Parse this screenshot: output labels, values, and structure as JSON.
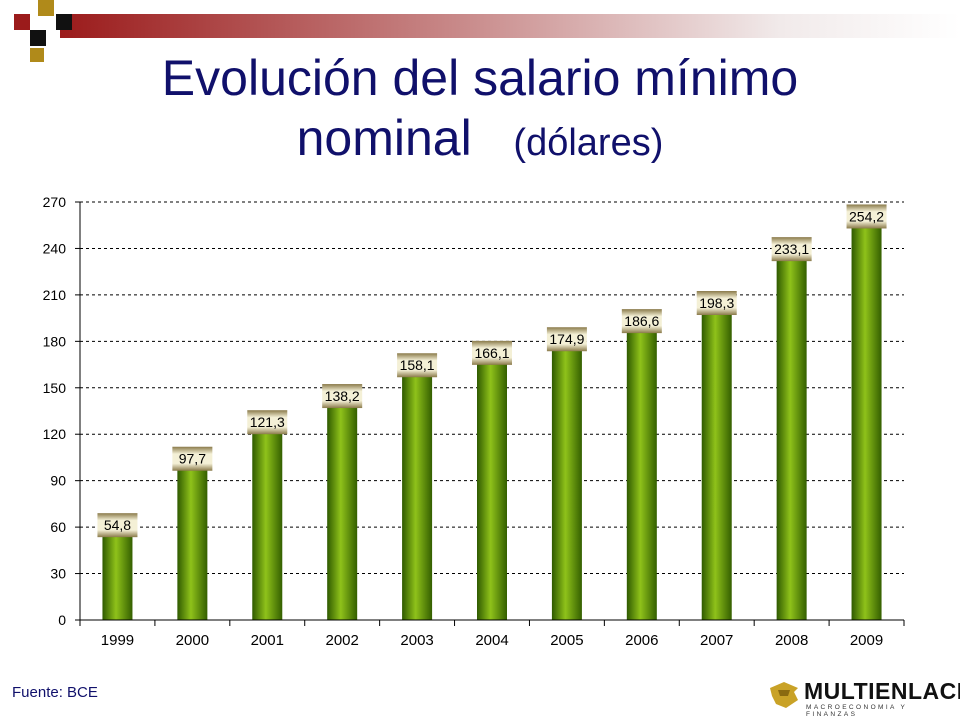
{
  "header": {
    "title_line1": "Evolución del salario mínimo",
    "title_line2": "nominal",
    "title_unit": "(dólares)",
    "accent_red": "#9b1b1b",
    "accent_gold": "#b08a1a",
    "title_color": "#10106b"
  },
  "footer": {
    "source": "Fuente: BCE",
    "logo_name": "MULTIENLACE",
    "logo_tagline": "MACROECONOMIA Y FINANZAS"
  },
  "chart_data": {
    "type": "bar",
    "title": "Evolución del salario mínimo nominal (dólares)",
    "categories": [
      "1999",
      "2000",
      "2001",
      "2002",
      "2003",
      "2004",
      "2005",
      "2006",
      "2007",
      "2008",
      "2009"
    ],
    "values": [
      54.8,
      97.7,
      121.3,
      138.2,
      158.1,
      166.1,
      174.9,
      186.6,
      198.3,
      233.1,
      254.2
    ],
    "value_labels": [
      "54,8",
      "97,7",
      "121,3",
      "138,2",
      "158,1",
      "166,1",
      "174,9",
      "186,6",
      "198,3",
      "233,1",
      "254,2"
    ],
    "yticks": [
      0,
      30,
      60,
      90,
      120,
      150,
      180,
      210,
      240,
      270
    ],
    "ylim": [
      0,
      270
    ],
    "xlabel": "",
    "ylabel": "",
    "grid": "horizontal dashed",
    "bar_color": "#6e9e00"
  }
}
